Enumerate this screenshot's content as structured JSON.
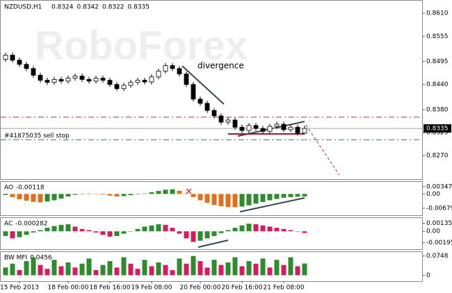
{
  "chart_data": [
    {
      "type": "candlestick",
      "title": "NZDUSD,H1",
      "header_values": [
        0.8324,
        0.8342,
        0.8322,
        0.8335
      ],
      "watermark": "RoboForex",
      "open": [
        0.85,
        0.851,
        0.8498,
        0.8488,
        0.8478,
        0.8462,
        0.845,
        0.8445,
        0.8452,
        0.8448,
        0.8455,
        0.846,
        0.8452,
        0.8448,
        0.8455,
        0.845,
        0.844,
        0.843,
        0.8438,
        0.8445,
        0.845,
        0.8446,
        0.8458,
        0.8472,
        0.8485,
        0.8478,
        0.8465,
        0.844,
        0.8405,
        0.8395,
        0.8378,
        0.8365,
        0.835,
        0.8355,
        0.8338,
        0.833,
        0.8342,
        0.8335,
        0.8328,
        0.834,
        0.8345,
        0.8332,
        0.8338,
        0.8324
      ],
      "high": [
        0.8516,
        0.8516,
        0.8504,
        0.8494,
        0.8484,
        0.8468,
        0.8456,
        0.8458,
        0.8458,
        0.8461,
        0.8466,
        0.8466,
        0.8458,
        0.8461,
        0.8461,
        0.8456,
        0.8446,
        0.8444,
        0.8451,
        0.8456,
        0.8456,
        0.8464,
        0.8478,
        0.8491,
        0.8491,
        0.8484,
        0.8471,
        0.8446,
        0.8411,
        0.8401,
        0.8384,
        0.8371,
        0.8361,
        0.8361,
        0.8344,
        0.8348,
        0.8348,
        0.8341,
        0.8346,
        0.8351,
        0.8351,
        0.8344,
        0.8344,
        0.8342
      ],
      "low": [
        0.8494,
        0.8492,
        0.8482,
        0.8472,
        0.8456,
        0.8444,
        0.8439,
        0.8439,
        0.8442,
        0.8442,
        0.8449,
        0.8446,
        0.8442,
        0.8442,
        0.8444,
        0.8434,
        0.8424,
        0.8424,
        0.8432,
        0.8439,
        0.844,
        0.844,
        0.8452,
        0.8466,
        0.8472,
        0.8459,
        0.8434,
        0.8399,
        0.8389,
        0.8372,
        0.8359,
        0.8344,
        0.8344,
        0.8332,
        0.8324,
        0.8324,
        0.8329,
        0.8322,
        0.8322,
        0.8334,
        0.8326,
        0.8326,
        0.8318,
        0.8322
      ],
      "close": [
        0.851,
        0.8498,
        0.8488,
        0.8478,
        0.8462,
        0.845,
        0.8445,
        0.8452,
        0.8448,
        0.8455,
        0.846,
        0.8452,
        0.8448,
        0.8455,
        0.845,
        0.844,
        0.843,
        0.8438,
        0.8445,
        0.845,
        0.8446,
        0.8458,
        0.8472,
        0.8485,
        0.8478,
        0.8465,
        0.844,
        0.8405,
        0.8395,
        0.8378,
        0.8365,
        0.835,
        0.8355,
        0.8338,
        0.833,
        0.8342,
        0.8335,
        0.8328,
        0.834,
        0.8345,
        0.8332,
        0.8338,
        0.8324,
        0.8335
      ],
      "ylim": [
        0.8214,
        0.864
      ],
      "yticks": [
        {
          "value": 0.861,
          "label": "0.8610"
        },
        0.8555,
        0.8495,
        {
          "value": 0.844,
          "label": "0.8440"
        },
        {
          "value": 0.838,
          "label": "0.8380"
        },
        0.8325,
        {
          "value": 0.827,
          "label": "0.8270"
        }
      ],
      "xticks": [
        {
          "value": 2,
          "label": "15 Feb 2013"
        },
        {
          "value": 9,
          "label": "18 Feb 00:00"
        },
        {
          "value": 15,
          "label": "18 Feb 16:00"
        },
        {
          "value": 21,
          "label": "19 Feb 08:00"
        },
        {
          "value": 28,
          "label": "20 Feb 00:00"
        },
        {
          "value": 34,
          "label": "20 Feb 16:00"
        },
        {
          "value": 40,
          "label": "21 Feb 08:00"
        }
      ],
      "current_price": 0.8335,
      "current_color": "#a0a0a0",
      "order_level": 0.8308,
      "order_label": "#41875035 sell stop",
      "order_color": "#2e7d32",
      "resistance_level": 0.8362,
      "resistance_color": "#c62828",
      "support_level": 0.8322,
      "support_color": "#8b1a1a",
      "annotation": "divergence"
    },
    {
      "type": "histogram",
      "name": "AO",
      "value": -0.00118,
      "up_color": "#2e8b2e",
      "down_color": "#e07020",
      "values": [
        -0.0005,
        -0.0015,
        -0.0025,
        -0.0032,
        -0.0038,
        -0.004,
        -0.0036,
        -0.003,
        -0.0022,
        -0.0012,
        -0.0004,
        0.0,
        0.0002,
        0.0001,
        -0.0003,
        -0.0008,
        -0.0012,
        -0.001,
        -0.0006,
        -0.0002,
        0.0002,
        0.0008,
        0.0014,
        0.002,
        0.0022,
        0.0015,
        0.0002,
        -0.0015,
        -0.003,
        -0.0042,
        -0.0052,
        -0.0058,
        -0.0062,
        -0.0063,
        -0.006,
        -0.0054,
        -0.0046,
        -0.0038,
        -0.003,
        -0.0024,
        -0.0018,
        -0.0015,
        -0.0013,
        -0.00118
      ],
      "ylim": [
        -0.0101,
        0.0057
      ],
      "yticks": [
        0.00347,
        {
          "value": 0,
          "label": "0.00"
        },
        -0.00679
      ]
    },
    {
      "type": "histogram",
      "name": "AC",
      "value": -0.000282,
      "up_color": "#2e8b2e",
      "down_color": "#d81b60",
      "values": [
        -0.0008,
        -0.0012,
        -0.001,
        -0.0006,
        -0.0002,
        0.0002,
        0.0006,
        0.0009,
        0.0011,
        0.0012,
        0.0008,
        0.0004,
        0.0002,
        -0.0002,
        -0.0006,
        -0.0009,
        -0.0008,
        -0.0004,
        0.0,
        0.0004,
        0.0008,
        0.001,
        0.0012,
        0.0011,
        0.0006,
        -0.0004,
        -0.0012,
        -0.0018,
        -0.0016,
        -0.0012,
        -0.0008,
        -0.0003,
        0.0002,
        0.0006,
        0.001,
        0.0013,
        0.0012,
        0.001,
        0.0008,
        0.0006,
        0.0004,
        0.0002,
        0.0,
        -0.000282
      ],
      "ylim": [
        -0.00305,
        0.00226
      ],
      "yticks": [
        0.001356,
        {
          "value": 0,
          "label": "0.00"
        },
        -0.00195
      ]
    },
    {
      "type": "histogram",
      "name": "BW MFI",
      "value": 0.0456,
      "up_color": "#2e8b2e",
      "down_color": "#d81b60",
      "values": [
        0.03,
        0.045,
        0.02,
        0.055,
        0.07,
        0.04,
        0.025,
        0.06,
        0.035,
        0.05,
        0.03,
        0.045,
        0.065,
        0.02,
        0.04,
        0.055,
        0.03,
        0.07,
        0.045,
        0.025,
        0.06,
        0.035,
        0.05,
        0.04,
        0.02,
        0.065,
        0.045,
        0.075,
        0.055,
        0.03,
        0.06,
        0.04,
        0.05,
        0.07,
        0.035,
        0.055,
        0.045,
        0.065,
        0.03,
        0.06,
        0.04,
        0.07,
        0.035,
        0.0456
      ],
      "ylim": [
        -0.0232,
        0.0903
      ],
      "yticks": [
        0.0748,
        0
      ]
    }
  ]
}
